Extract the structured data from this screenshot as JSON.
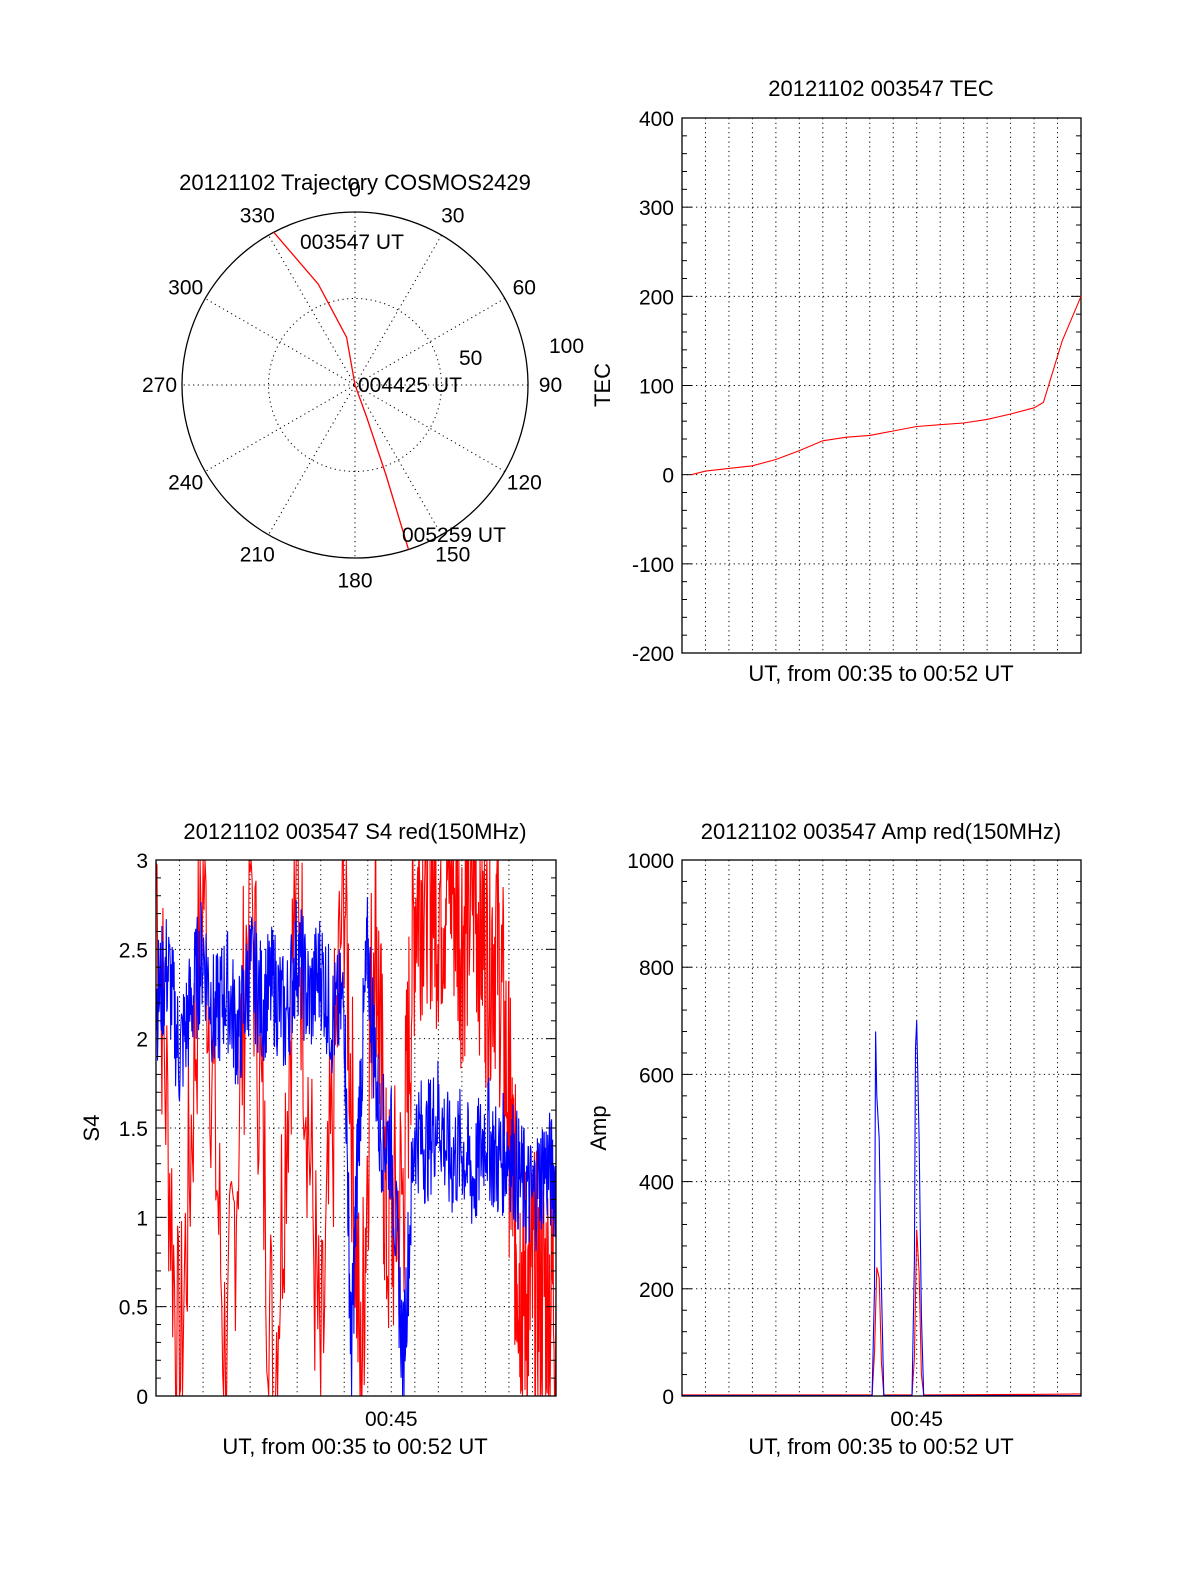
{
  "polar": {
    "title": "20121102 Trajectory COSMOS2429",
    "azimuth_labels": [
      {
        "az": 0,
        "text": "0"
      },
      {
        "az": 30,
        "text": "30"
      },
      {
        "az": 60,
        "text": "60"
      },
      {
        "az": 90,
        "text": "90"
      },
      {
        "az": 120,
        "text": "120"
      },
      {
        "az": 150,
        "text": "150"
      },
      {
        "az": 180,
        "text": "180"
      },
      {
        "az": 210,
        "text": "210"
      },
      {
        "az": 240,
        "text": "240"
      },
      {
        "az": 270,
        "text": "270"
      },
      {
        "az": 300,
        "text": "300"
      },
      {
        "az": 330,
        "text": "330"
      }
    ],
    "radius_labels": {
      "mid": "50",
      "outer": "100"
    },
    "rings": [
      50,
      100
    ],
    "trajectory": {
      "color": "#ff0000",
      "points": [
        [
          -28,
          100
        ],
        [
          -20,
          62
        ],
        [
          -10,
          28
        ],
        [
          0,
          0
        ],
        [
          160,
          20
        ],
        [
          161,
          55
        ],
        [
          162,
          100
        ]
      ]
    },
    "annotations": {
      "start": "003547 UT",
      "mid": "004425 UT",
      "end": "005259 UT"
    }
  },
  "chart_data": [
    {
      "type": "line",
      "title": "20121102 003547 TEC",
      "ylabel": "TEC",
      "xlabel": "UT, from 00:35 to 00:52 UT",
      "xlim": [
        "00:35",
        "00:52"
      ],
      "ylim": [
        -200,
        400
      ],
      "yticks": [
        "-200",
        "-100",
        "0",
        "100",
        "200",
        "300",
        "400"
      ],
      "grid": true,
      "series": [
        {
          "color": "#ff0000",
          "x": [
            0.4,
            1.0,
            2.0,
            3.0,
            4.0,
            5.0,
            6.0,
            7.0,
            8.0,
            9.0,
            10.0,
            11.0,
            12.0,
            13.0,
            14.0,
            15.0,
            15.4,
            16.2,
            17.0
          ],
          "y": [
            0,
            4,
            7,
            10,
            17,
            27,
            38,
            42,
            44,
            49,
            54,
            56,
            58,
            62,
            68,
            75,
            81,
            150,
            200
          ]
        }
      ]
    },
    {
      "type": "line",
      "title": "20121102 003547 S4 red(150MHz)",
      "ylabel": "S4",
      "xlabel": "UT, from 00:35 to 00:52 UT",
      "xtick_labels": [
        {
          "x": 10,
          "text": "00:45"
        }
      ],
      "ylim": [
        0,
        3
      ],
      "yticks": [
        "0",
        "0.5",
        "1",
        "1.5",
        "2",
        "2.5",
        "3"
      ],
      "grid": true,
      "series": [
        {
          "color": "#ff0000",
          "x": [
            0,
            1,
            2,
            3,
            4,
            5,
            6,
            7,
            8,
            8.7,
            9.3,
            9.8,
            10.5,
            11,
            11.5,
            12,
            12.5,
            13,
            13.5,
            14,
            14.5,
            15,
            15.3,
            15.6,
            16,
            16.5,
            17
          ],
          "y": [
            3,
            0,
            3,
            0,
            3,
            0,
            3,
            0,
            3,
            0,
            2.9,
            0.9,
            1.1,
            2.8,
            3.0,
            2.8,
            3.0,
            2.6,
            2.9,
            2.5,
            2.6,
            1.6,
            0.9,
            0.6,
            0.6,
            0.6,
            0.6
          ]
        },
        {
          "color": "#0000ff",
          "x": [
            0,
            0.5,
            1,
            1.5,
            2,
            2.5,
            3,
            3.5,
            4,
            4.5,
            5,
            5.5,
            6,
            6.5,
            7,
            7.5,
            8,
            8.3,
            8.6,
            9,
            9.5,
            10,
            10.5,
            11,
            11.5,
            12,
            12.5,
            13,
            13.5,
            14,
            14.5,
            15,
            15.5,
            16,
            16.5,
            17
          ],
          "y": [
            2.2,
            2.4,
            1.9,
            2.2,
            2.5,
            2.1,
            2.3,
            2.0,
            2.4,
            2.2,
            2.3,
            2.1,
            2.5,
            2.2,
            2.4,
            2.1,
            2.2,
            0.2,
            1.5,
            2.5,
            1.5,
            1.4,
            0.2,
            1.5,
            1.4,
            1.6,
            1.3,
            1.4,
            1.2,
            1.5,
            1.3,
            1.4,
            1.2,
            1.1,
            1.3,
            1.2
          ]
        }
      ]
    },
    {
      "type": "line",
      "title": "20121102 003547 Amp red(150MHz)",
      "ylabel": "Amp",
      "xlabel": "UT, from 00:35 to 00:52 UT",
      "xtick_labels": [
        {
          "x": 10,
          "text": "00:45"
        }
      ],
      "ylim": [
        0,
        1000
      ],
      "yticks": [
        "0",
        "200",
        "400",
        "600",
        "800",
        "1000"
      ],
      "grid": true,
      "series": [
        {
          "color": "#ff0000",
          "x": [
            0,
            8.1,
            8.2,
            8.3,
            8.4,
            8.5,
            8.6,
            9.8,
            9.9,
            10.0,
            10.1,
            10.2,
            10.3,
            15.0,
            17
          ],
          "y": [
            2,
            2,
            80,
            240,
            220,
            60,
            2,
            2,
            70,
            310,
            230,
            40,
            2,
            3,
            4
          ]
        },
        {
          "color": "#0000ff",
          "x": [
            0,
            8.1,
            8.2,
            8.25,
            8.3,
            8.4,
            8.5,
            8.6,
            9.8,
            9.9,
            9.95,
            10.0,
            10.1,
            10.2,
            10.3,
            17
          ],
          "y": [
            1,
            1,
            200,
            680,
            560,
            480,
            200,
            1,
            1,
            250,
            650,
            700,
            480,
            150,
            1,
            1
          ]
        }
      ]
    }
  ]
}
